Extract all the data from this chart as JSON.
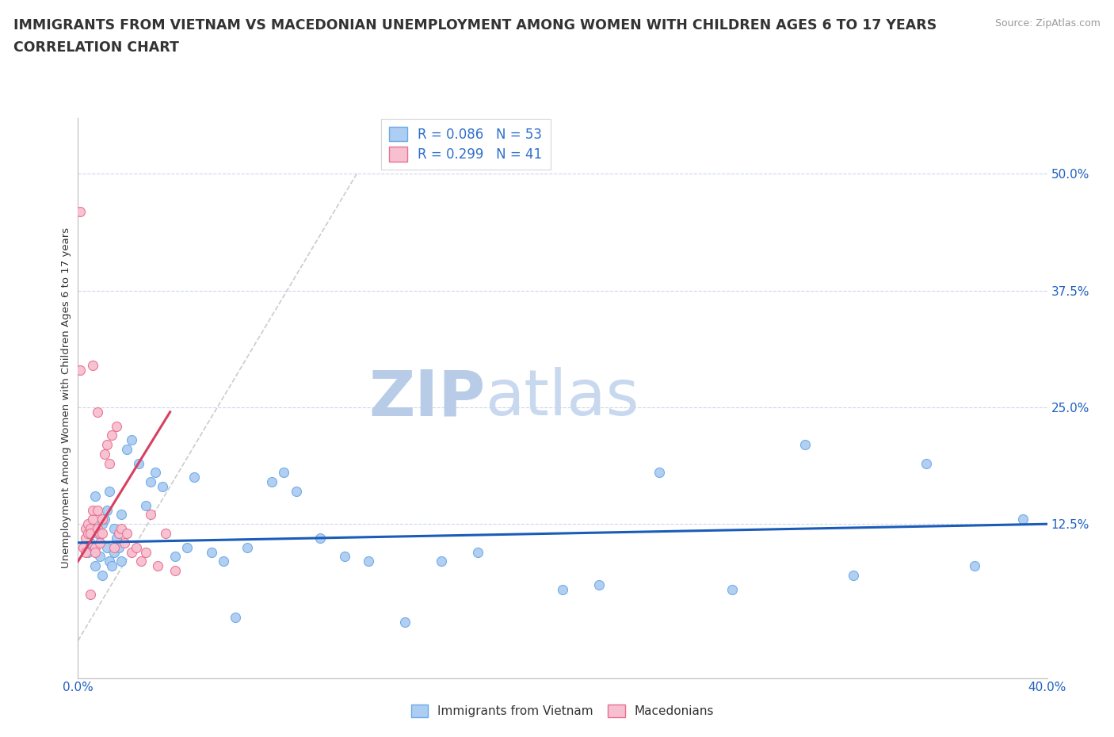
{
  "title1": "IMMIGRANTS FROM VIETNAM VS MACEDONIAN UNEMPLOYMENT AMONG WOMEN WITH CHILDREN AGES 6 TO 17 YEARS",
  "title2": "CORRELATION CHART",
  "source_text": "Source: ZipAtlas.com",
  "ylabel": "Unemployment Among Women with Children Ages 6 to 17 years",
  "ytick_labels": [
    "50.0%",
    "37.5%",
    "25.0%",
    "12.5%"
  ],
  "ytick_values": [
    0.5,
    0.375,
    0.25,
    0.125
  ],
  "xlim": [
    0.0,
    0.4
  ],
  "ylim": [
    -0.04,
    0.56
  ],
  "watermark_part1": "ZIP",
  "watermark_part2": "atlas",
  "blue_scatter_x": [
    0.004,
    0.005,
    0.006,
    0.007,
    0.008,
    0.009,
    0.01,
    0.01,
    0.011,
    0.012,
    0.012,
    0.013,
    0.014,
    0.015,
    0.015,
    0.016,
    0.017,
    0.018,
    0.02,
    0.022,
    0.025,
    0.03,
    0.032,
    0.035,
    0.04,
    0.045,
    0.048,
    0.055,
    0.06,
    0.065,
    0.07,
    0.08,
    0.085,
    0.09,
    0.1,
    0.11,
    0.12,
    0.135,
    0.15,
    0.165,
    0.2,
    0.215,
    0.24,
    0.27,
    0.3,
    0.32,
    0.35,
    0.37,
    0.39,
    0.007,
    0.013,
    0.018,
    0.028
  ],
  "blue_scatter_y": [
    0.095,
    0.105,
    0.12,
    0.08,
    0.115,
    0.09,
    0.125,
    0.07,
    0.13,
    0.1,
    0.14,
    0.085,
    0.08,
    0.12,
    0.095,
    0.11,
    0.1,
    0.085,
    0.205,
    0.215,
    0.19,
    0.17,
    0.18,
    0.165,
    0.09,
    0.1,
    0.175,
    0.095,
    0.085,
    0.025,
    0.1,
    0.17,
    0.18,
    0.16,
    0.11,
    0.09,
    0.085,
    0.02,
    0.085,
    0.095,
    0.055,
    0.06,
    0.18,
    0.055,
    0.21,
    0.07,
    0.19,
    0.08,
    0.13,
    0.155,
    0.16,
    0.135,
    0.145
  ],
  "pink_scatter_x": [
    0.001,
    0.002,
    0.003,
    0.003,
    0.004,
    0.004,
    0.005,
    0.005,
    0.005,
    0.006,
    0.006,
    0.007,
    0.007,
    0.008,
    0.008,
    0.009,
    0.009,
    0.01,
    0.01,
    0.011,
    0.012,
    0.013,
    0.014,
    0.015,
    0.016,
    0.017,
    0.018,
    0.019,
    0.02,
    0.022,
    0.024,
    0.026,
    0.028,
    0.03,
    0.033,
    0.036,
    0.04,
    0.001,
    0.003,
    0.006,
    0.008
  ],
  "pink_scatter_y": [
    0.46,
    0.1,
    0.11,
    0.12,
    0.115,
    0.125,
    0.12,
    0.115,
    0.05,
    0.13,
    0.14,
    0.1,
    0.095,
    0.14,
    0.12,
    0.115,
    0.105,
    0.13,
    0.115,
    0.2,
    0.21,
    0.19,
    0.22,
    0.1,
    0.23,
    0.115,
    0.12,
    0.105,
    0.115,
    0.095,
    0.1,
    0.085,
    0.095,
    0.135,
    0.08,
    0.115,
    0.075,
    0.29,
    0.095,
    0.295,
    0.245
  ],
  "blue_line_x": [
    0.0,
    0.4
  ],
  "blue_line_y": [
    0.105,
    0.125
  ],
  "pink_line_x": [
    0.0,
    0.038
  ],
  "pink_line_y": [
    0.085,
    0.245
  ],
  "diagonal_line_x": [
    0.0,
    0.115
  ],
  "diagonal_line_y": [
    0.0,
    0.5
  ],
  "blue_color": "#aecdf2",
  "blue_edge_color": "#6aaae8",
  "pink_color": "#f7c0d0",
  "pink_edge_color": "#e87090",
  "blue_line_color": "#1a5cb8",
  "pink_line_color": "#d84060",
  "diagonal_color": "#cccccc",
  "legend_blue_label": "R = 0.086   N = 53",
  "legend_pink_label": "R = 0.299   N = 41",
  "legend_text_color": "#3070cc",
  "bottom_label_blue": "Immigrants from Vietnam",
  "bottom_label_pink": "Macedonians",
  "title_color": "#333333",
  "title_fontsize": 12.5,
  "axis_label_color": "#2060c0",
  "source_color": "#999999",
  "watermark_color_zip": "#b8cce8",
  "watermark_color_atlas": "#c8d8ee"
}
